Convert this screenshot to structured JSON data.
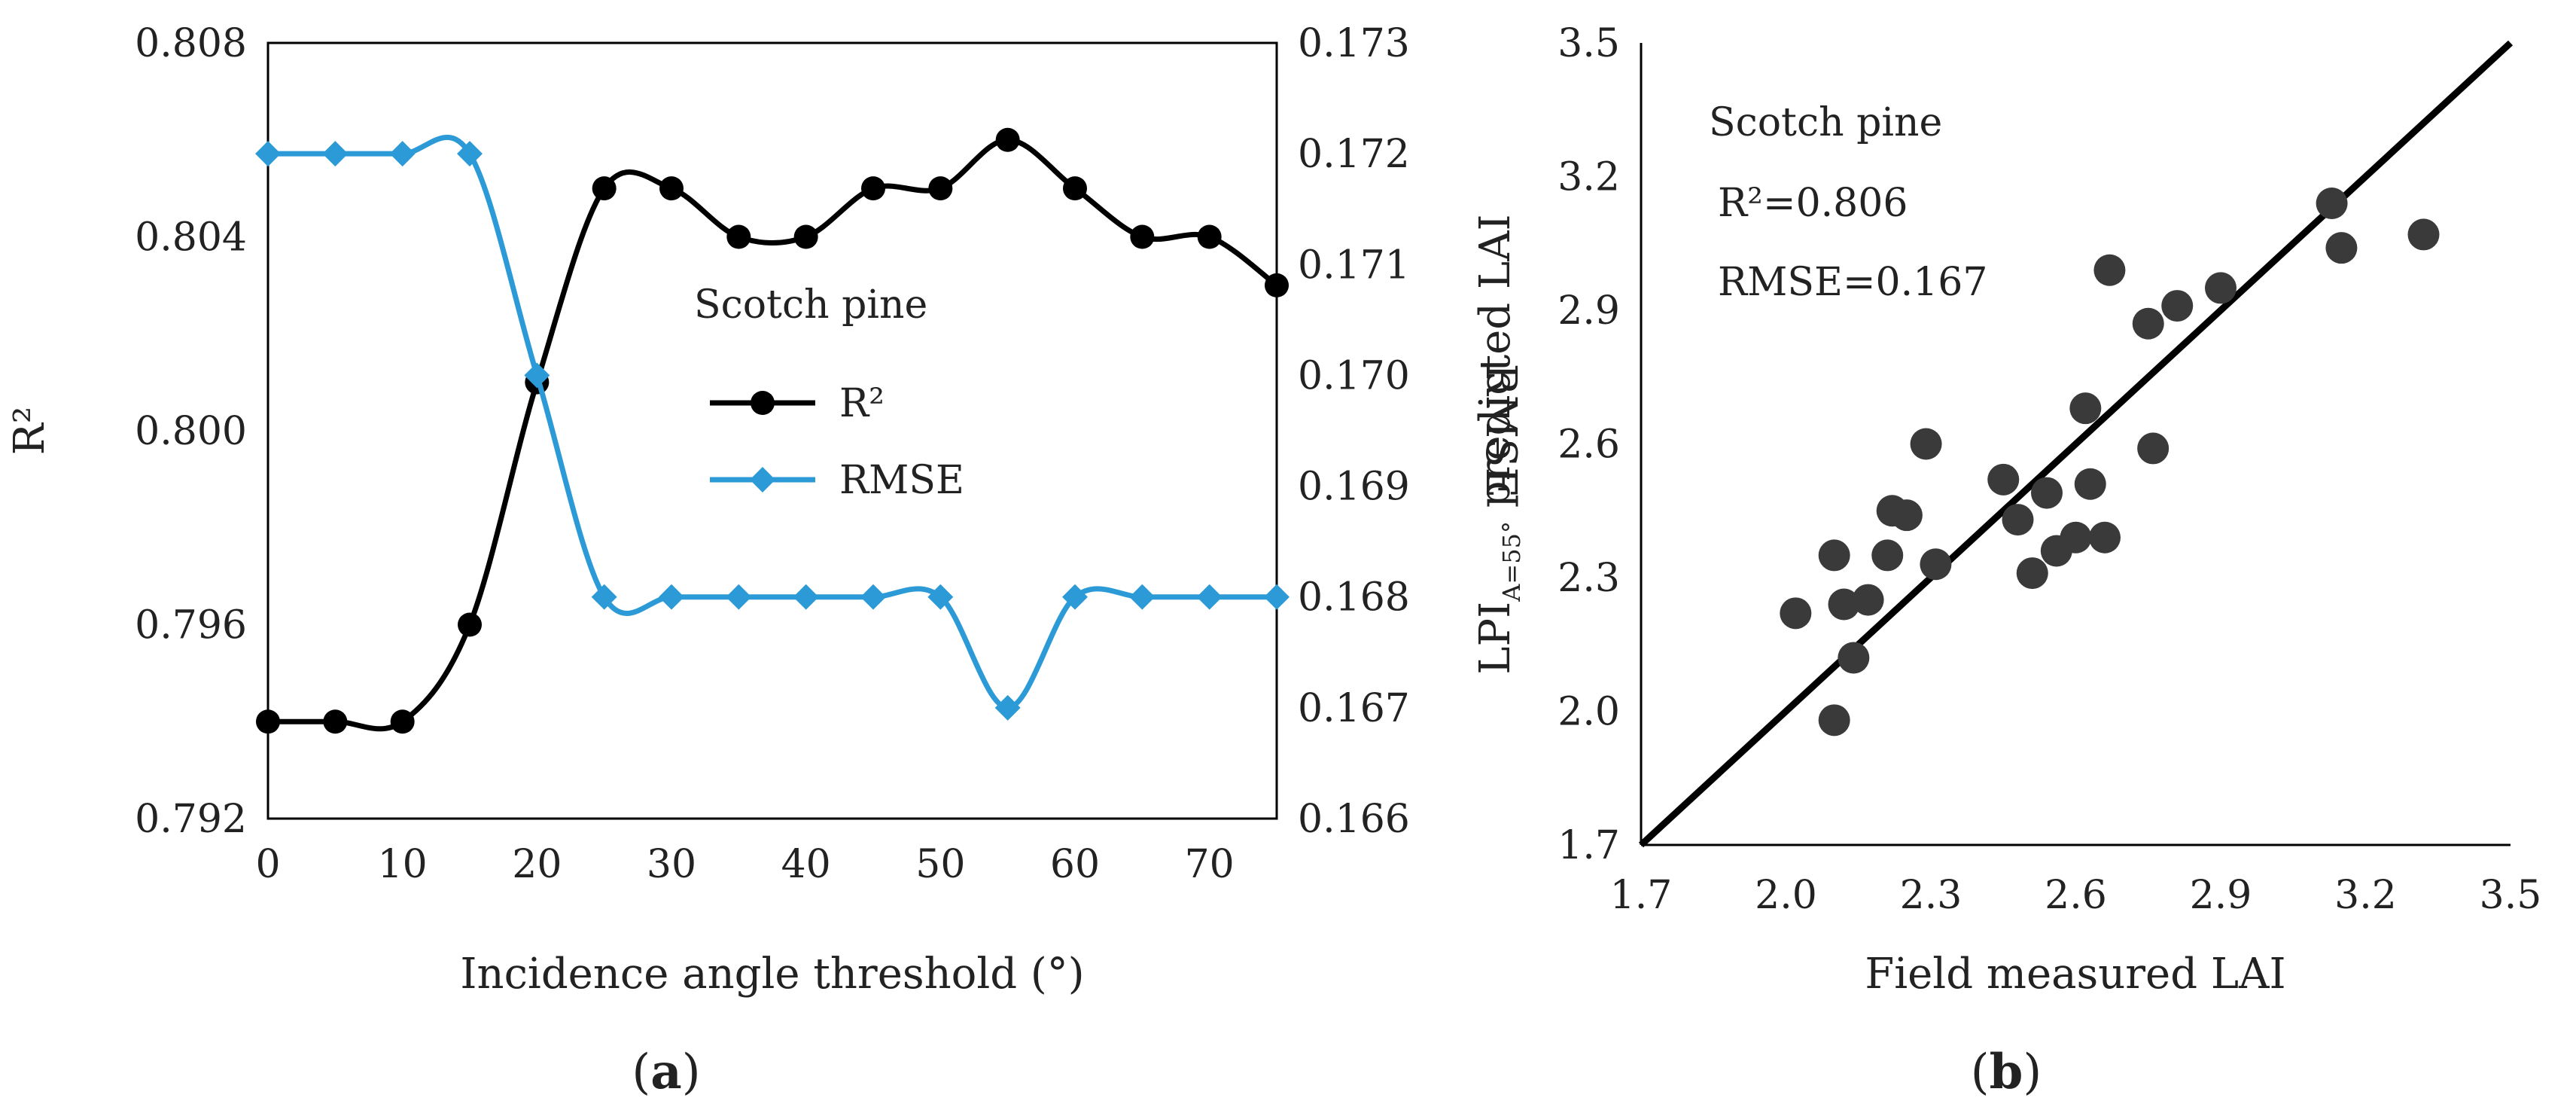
{
  "chart_data": [
    {
      "type": "line",
      "panel_label": "a",
      "xlabel": "Incidence angle threshold (°)",
      "ylabel": "R²",
      "y2label": "RMSE",
      "x": [
        0,
        5,
        10,
        15,
        20,
        25,
        30,
        35,
        40,
        45,
        50,
        55,
        60,
        65,
        70,
        75
      ],
      "xlim": [
        0,
        75
      ],
      "xticks": [
        0,
        10,
        20,
        30,
        40,
        50,
        60,
        70
      ],
      "ylim": [
        0.792,
        0.808
      ],
      "yticks": [
        "0.792",
        "0.796",
        "0.800",
        "0.804",
        "0.808"
      ],
      "y2lim": [
        0.166,
        0.173
      ],
      "y2ticks": [
        "0.166",
        "0.167",
        "0.168",
        "0.169",
        "0.170",
        "0.171",
        "0.172",
        "0.173"
      ],
      "annotation": "Scotch pine",
      "legend_position": "center-right",
      "series": [
        {
          "name": "R²",
          "axis": "left",
          "color": "#000000",
          "marker": "circle",
          "values": [
            0.794,
            0.794,
            0.794,
            0.796,
            0.801,
            0.805,
            0.805,
            0.804,
            0.804,
            0.805,
            0.805,
            0.806,
            0.805,
            0.804,
            0.804,
            0.803
          ]
        },
        {
          "name": "RMSE",
          "axis": "right",
          "color": "#2b9ad6",
          "marker": "diamond",
          "values": [
            0.172,
            0.172,
            0.172,
            0.172,
            0.17,
            0.168,
            0.168,
            0.168,
            0.168,
            0.168,
            0.168,
            0.167,
            0.168,
            0.168,
            0.168,
            0.168
          ]
        }
      ]
    },
    {
      "type": "scatter",
      "panel_label": "b",
      "xlabel": "Field measured LAI",
      "ylabel_main": "LPI",
      "ylabel_sub": "A=55°",
      "ylabel_rest": " predicted LAI",
      "xlim": [
        1.7,
        3.5
      ],
      "ylim": [
        1.7,
        3.5
      ],
      "xticks": [
        "1.7",
        "2.0",
        "2.3",
        "2.6",
        "2.9",
        "3.2",
        "3.5"
      ],
      "yticks": [
        "1.7",
        "2.0",
        "2.3",
        "2.6",
        "2.9",
        "3.2",
        "3.5"
      ],
      "annotations": [
        "Scotch pine",
        "R²=0.806",
        "RMSE=0.167"
      ],
      "line": {
        "type": "1:1",
        "from": [
          1.7,
          1.7
        ],
        "to": [
          3.5,
          3.5
        ]
      },
      "point_color": "#3a3a3a",
      "points": [
        [
          2.02,
          2.22
        ],
        [
          2.1,
          1.98
        ],
        [
          2.1,
          2.35
        ],
        [
          2.12,
          2.24
        ],
        [
          2.14,
          2.12
        ],
        [
          2.17,
          2.25
        ],
        [
          2.21,
          2.35
        ],
        [
          2.22,
          2.45
        ],
        [
          2.25,
          2.44
        ],
        [
          2.29,
          2.6
        ],
        [
          2.31,
          2.33
        ],
        [
          2.45,
          2.52
        ],
        [
          2.48,
          2.43
        ],
        [
          2.51,
          2.31
        ],
        [
          2.54,
          2.49
        ],
        [
          2.56,
          2.36
        ],
        [
          2.6,
          2.39
        ],
        [
          2.62,
          2.68
        ],
        [
          2.63,
          2.51
        ],
        [
          2.66,
          2.39
        ],
        [
          2.67,
          2.99
        ],
        [
          2.75,
          2.87
        ],
        [
          2.76,
          2.59
        ],
        [
          2.81,
          2.91
        ],
        [
          2.9,
          2.95
        ],
        [
          3.13,
          3.14
        ],
        [
          3.15,
          3.04
        ],
        [
          3.32,
          3.07
        ]
      ]
    }
  ]
}
